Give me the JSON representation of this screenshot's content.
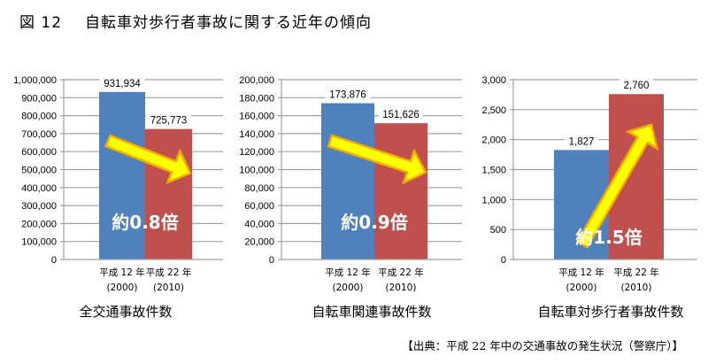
{
  "figure": {
    "number": "図 12",
    "title": "自転車対歩行者事故に関する近年の傾向",
    "source": "【出典：平成 22 年中の交通事故の発生状況（警察庁）】"
  },
  "colors": {
    "bar_2000": "#4F81BD",
    "bar_2010": "#C0504D",
    "arrow_fill": "#FFFF00",
    "arrow_stroke": "#F5A800",
    "gridline": "#A0A0A0",
    "ratio_text": "#FFFFFF"
  },
  "chart_data": [
    {
      "type": "bar",
      "title": "全交通事故件数",
      "categories": [
        "平成 12 年 (2000)",
        "平成 22 年 (2010)"
      ],
      "category_lines": [
        [
          "平成 12 年",
          "(2000)"
        ],
        [
          "平成 22 年",
          "(2010)"
        ]
      ],
      "values": [
        931934,
        725773
      ],
      "value_labels": [
        "931,934",
        "725,773"
      ],
      "ylim": [
        0,
        1000000
      ],
      "yticks": [
        0,
        100000,
        200000,
        300000,
        400000,
        500000,
        600000,
        700000,
        800000,
        900000,
        1000000
      ],
      "ytick_labels": [
        "0",
        "100,000",
        "200,000",
        "300,000",
        "400,000",
        "500,000",
        "600,000",
        "700,000",
        "800,000",
        "900,000",
        "1,000,000"
      ],
      "annotation": "約0.8倍",
      "trend": "down",
      "grid": true,
      "xlabel": "",
      "ylabel": ""
    },
    {
      "type": "bar",
      "title": "自転車関連事故件数",
      "categories": [
        "平成 12 年 (2000)",
        "平成 22 年 (2010)"
      ],
      "category_lines": [
        [
          "平成 12 年",
          "(2000)"
        ],
        [
          "平成 22 年",
          "(2010)"
        ]
      ],
      "values": [
        173876,
        151626
      ],
      "value_labels": [
        "173,876",
        "151,626"
      ],
      "ylim": [
        0,
        200000
      ],
      "yticks": [
        0,
        20000,
        40000,
        60000,
        80000,
        100000,
        120000,
        140000,
        160000,
        180000,
        200000
      ],
      "ytick_labels": [
        "0",
        "20,000",
        "40,000",
        "60,000",
        "80,000",
        "100,000",
        "120,000",
        "140,000",
        "160,000",
        "180,000",
        "200,000"
      ],
      "annotation": "約0.9倍",
      "trend": "down",
      "grid": true,
      "xlabel": "",
      "ylabel": ""
    },
    {
      "type": "bar",
      "title": "自転車対歩行者事故件数",
      "categories": [
        "平成 12 年 (2000)",
        "平成 22 年 (2010)"
      ],
      "category_lines": [
        [
          "平成 12 年",
          "(2000)"
        ],
        [
          "平成 22 年",
          "(2010)"
        ]
      ],
      "values": [
        1827,
        2760
      ],
      "value_labels": [
        "1,827",
        "2,760"
      ],
      "ylim": [
        0,
        3000
      ],
      "yticks": [
        0,
        500,
        1000,
        1500,
        2000,
        2500,
        3000
      ],
      "ytick_labels": [
        "0",
        "500",
        "1,000",
        "1,500",
        "2,000",
        "2,500",
        "3,000"
      ],
      "annotation": "約1.5倍",
      "trend": "up",
      "grid": true,
      "xlabel": "",
      "ylabel": ""
    }
  ]
}
